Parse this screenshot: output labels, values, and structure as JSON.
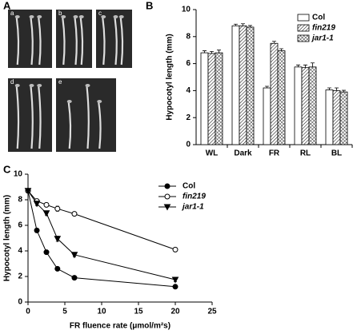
{
  "panel_labels": [
    "A",
    "B",
    "C"
  ],
  "photo_labels": [
    "a",
    "b",
    "c",
    "d",
    "e"
  ],
  "chart_data": [
    {
      "type": "bar",
      "ylabel": "Hypocotyl length (mm)",
      "categories": [
        "WL",
        "Dark",
        "FR",
        "RL",
        "BL"
      ],
      "series": [
        {
          "name": "Col",
          "color": "#ffffff",
          "pattern": "none",
          "values": [
            6.8,
            8.8,
            4.2,
            5.75,
            4.05
          ],
          "errors": [
            0.15,
            0.12,
            0.12,
            0.15,
            0.15
          ]
        },
        {
          "name": "fin219",
          "color": "#ffffff",
          "pattern": "diagonal",
          "values": [
            6.75,
            8.8,
            7.5,
            5.7,
            4.0
          ],
          "errors": [
            0.15,
            0.15,
            0.15,
            0.2,
            0.2
          ]
        },
        {
          "name": "jar1-1",
          "color": "#ffffff",
          "pattern": "crosshatch",
          "values": [
            6.8,
            8.7,
            6.95,
            5.75,
            3.9
          ],
          "errors": [
            0.2,
            0.12,
            0.15,
            0.3,
            0.12
          ]
        }
      ],
      "ylim": [
        0,
        10
      ],
      "yticks": [
        0,
        2,
        4,
        6,
        8,
        10
      ],
      "legend": "top-right"
    },
    {
      "type": "line",
      "xlabel": "FR fluence rate (μmol/m²s)",
      "ylabel": "Hypocotyl length (mm)",
      "x": [
        0,
        1.2,
        2.5,
        4,
        6.3,
        20
      ],
      "series": [
        {
          "name": "Col",
          "color": "#000000",
          "marker": "circle",
          "filled": true,
          "values": [
            8.7,
            5.6,
            3.9,
            2.6,
            1.9,
            1.2
          ],
          "errors": [
            0.15,
            0.15,
            0.15,
            0.1,
            0.1,
            0.1
          ]
        },
        {
          "name": "fin219",
          "color": "#000000",
          "marker": "circle",
          "filled": false,
          "values": [
            8.7,
            7.9,
            7.6,
            7.3,
            6.9,
            4.1
          ],
          "errors": [
            0.15,
            0.15,
            0.15,
            0.2,
            0.1,
            0.15
          ]
        },
        {
          "name": "jar1-1",
          "color": "#000000",
          "marker": "triangle-down",
          "filled": true,
          "values": [
            8.7,
            7.7,
            6.95,
            4.95,
            3.7,
            1.75
          ],
          "errors": [
            0.15,
            0.15,
            0.15,
            0.2,
            0.15,
            0.15
          ]
        }
      ],
      "xlim": [
        0,
        25
      ],
      "xticks": [
        0,
        5,
        10,
        15,
        20,
        25
      ],
      "ylim": [
        0,
        10
      ],
      "yticks": [
        0,
        2,
        4,
        6,
        8,
        10
      ],
      "legend": "top-right"
    }
  ]
}
